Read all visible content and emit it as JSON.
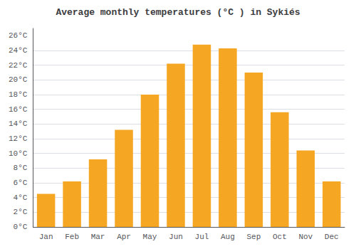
{
  "chart_data": {
    "type": "bar",
    "title": "Average monthly temperatures (°C ) in Sykiés",
    "categories": [
      "Jan",
      "Feb",
      "Mar",
      "Apr",
      "May",
      "Jun",
      "Jul",
      "Aug",
      "Sep",
      "Oct",
      "Nov",
      "Dec"
    ],
    "values": [
      4.5,
      6.2,
      9.2,
      13.2,
      18.0,
      22.2,
      24.8,
      24.3,
      21.0,
      15.6,
      10.4,
      6.2
    ],
    "color": "#F5A623",
    "ylim": [
      0,
      27
    ],
    "yticks": [
      {
        "value": 0,
        "label": "0°C"
      },
      {
        "value": 2,
        "label": "2°C"
      },
      {
        "value": 4,
        "label": "4°C"
      },
      {
        "value": 6,
        "label": "6°C"
      },
      {
        "value": 8,
        "label": "8°C"
      },
      {
        "value": 10,
        "label": "10°C"
      },
      {
        "value": 12,
        "label": "12°C"
      },
      {
        "value": 14,
        "label": "14°C"
      },
      {
        "value": 16,
        "label": "16°C"
      },
      {
        "value": 18,
        "label": "18°C"
      },
      {
        "value": 20,
        "label": "20°C"
      },
      {
        "value": 22,
        "label": "22°C"
      },
      {
        "value": 24,
        "label": "24°C"
      },
      {
        "value": 26,
        "label": "26°C"
      }
    ],
    "grid": true
  }
}
